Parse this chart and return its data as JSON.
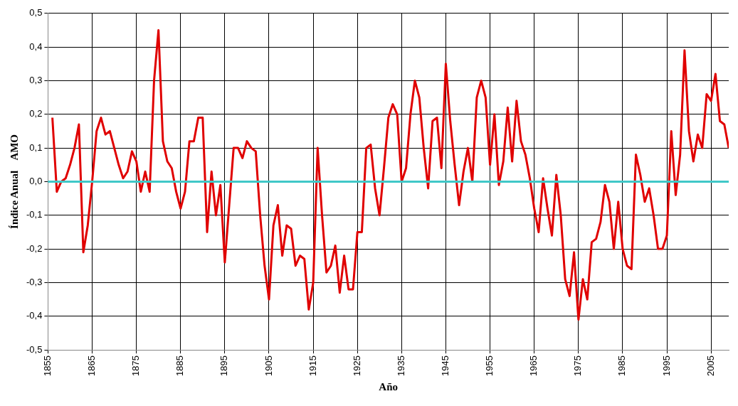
{
  "chart_data": {
    "type": "line",
    "xlabel": "Año",
    "ylabel": "Índice Anual    AMO",
    "x": [
      1856,
      1857,
      1858,
      1859,
      1860,
      1861,
      1862,
      1863,
      1864,
      1865,
      1866,
      1867,
      1868,
      1869,
      1870,
      1871,
      1872,
      1873,
      1874,
      1875,
      1876,
      1877,
      1878,
      1879,
      1880,
      1881,
      1882,
      1883,
      1884,
      1885,
      1886,
      1887,
      1888,
      1889,
      1890,
      1891,
      1892,
      1893,
      1894,
      1895,
      1896,
      1897,
      1898,
      1899,
      1900,
      1901,
      1902,
      1903,
      1904,
      1905,
      1906,
      1907,
      1908,
      1909,
      1910,
      1911,
      1912,
      1913,
      1914,
      1915,
      1916,
      1917,
      1918,
      1919,
      1920,
      1921,
      1922,
      1923,
      1924,
      1925,
      1926,
      1927,
      1928,
      1929,
      1930,
      1931,
      1932,
      1933,
      1934,
      1935,
      1936,
      1937,
      1938,
      1939,
      1940,
      1941,
      1942,
      1943,
      1944,
      1945,
      1946,
      1947,
      1948,
      1949,
      1950,
      1951,
      1952,
      1953,
      1954,
      1955,
      1956,
      1957,
      1958,
      1959,
      1960,
      1961,
      1962,
      1963,
      1964,
      1965,
      1966,
      1967,
      1968,
      1969,
      1970,
      1971,
      1972,
      1973,
      1974,
      1975,
      1976,
      1977,
      1978,
      1979,
      1980,
      1981,
      1982,
      1983,
      1984,
      1985,
      1986,
      1987,
      1988,
      1989,
      1990,
      1991,
      1992,
      1993,
      1994,
      1995,
      1996,
      1997,
      1998,
      1999,
      2000,
      2001,
      2002,
      2003,
      2004,
      2005,
      2006,
      2007,
      2008,
      2009
    ],
    "series": [
      {
        "color": "#e00000",
        "values": [
          0.19,
          -0.03,
          0.0,
          0.01,
          0.05,
          0.1,
          0.17,
          -0.21,
          -0.13,
          0.0,
          0.15,
          0.19,
          0.14,
          0.15,
          0.1,
          0.05,
          0.01,
          0.03,
          0.09,
          0.06,
          -0.03,
          0.03,
          -0.03,
          0.3,
          0.45,
          0.12,
          0.06,
          0.04,
          -0.03,
          -0.08,
          -0.03,
          0.12,
          0.12,
          0.19,
          0.19,
          -0.15,
          0.03,
          -0.1,
          -0.01,
          -0.24,
          -0.07,
          0.1,
          0.1,
          0.07,
          0.12,
          0.1,
          0.09,
          -0.1,
          -0.25,
          -0.35,
          -0.13,
          -0.07,
          -0.22,
          -0.13,
          -0.14,
          -0.25,
          -0.22,
          -0.23,
          -0.38,
          -0.3,
          0.1,
          -0.1,
          -0.27,
          -0.25,
          -0.19,
          -0.33,
          -0.22,
          -0.32,
          -0.32,
          -0.15,
          -0.15,
          0.1,
          0.11,
          -0.02,
          -0.1,
          0.04,
          0.19,
          0.23,
          0.2,
          0.0,
          0.04,
          0.2,
          0.3,
          0.25,
          0.1,
          -0.02,
          0.18,
          0.19,
          0.04,
          0.35,
          0.18,
          0.05,
          -0.07,
          0.03,
          0.1,
          0.0,
          0.25,
          0.3,
          0.25,
          0.05,
          0.2,
          -0.01,
          0.06,
          0.22,
          0.06,
          0.24,
          0.12,
          0.08,
          0.01,
          -0.08,
          -0.15,
          0.01,
          -0.08,
          -0.16,
          0.02,
          -0.1,
          -0.29,
          -0.34,
          -0.21,
          -0.41,
          -0.29,
          -0.35,
          -0.18,
          -0.17,
          -0.12,
          -0.01,
          -0.06,
          -0.2,
          -0.06,
          -0.2,
          -0.25,
          -0.26,
          0.08,
          0.02,
          -0.06,
          -0.02,
          -0.1,
          -0.2,
          -0.2,
          -0.16,
          0.15,
          -0.04,
          0.08,
          0.39,
          0.15,
          0.06,
          0.14,
          0.1,
          0.26,
          0.24,
          0.32,
          0.18,
          0.17,
          0.1
        ]
      }
    ],
    "xlim": [
      1855,
      2009
    ],
    "xticks": [
      1855,
      1865,
      1875,
      1885,
      1895,
      1905,
      1915,
      1925,
      1935,
      1945,
      1955,
      1965,
      1975,
      1985,
      1995,
      2005
    ],
    "ylim": [
      -0.5,
      0.5
    ],
    "yticks": [
      {
        "value": -0.5,
        "label": "-0,5"
      },
      {
        "value": -0.4,
        "label": "-0,4"
      },
      {
        "value": -0.3,
        "label": "-0,3"
      },
      {
        "value": -0.2,
        "label": "-0,2"
      },
      {
        "value": -0.1,
        "label": "-0,1"
      },
      {
        "value": 0,
        "label": "0,0"
      },
      {
        "value": 0.1,
        "label": "0,1"
      },
      {
        "value": 0.2,
        "label": "0,2"
      },
      {
        "value": 0.3,
        "label": "0,3"
      },
      {
        "value": 0.4,
        "label": "0,4"
      },
      {
        "value": 0.5,
        "label": "0,5"
      }
    ],
    "ref_lines": [
      {
        "axis": "y",
        "value": 0,
        "color": "#40c8c8"
      }
    ],
    "grid": true,
    "legend": false,
    "marker": "none",
    "line_style": "solid"
  }
}
